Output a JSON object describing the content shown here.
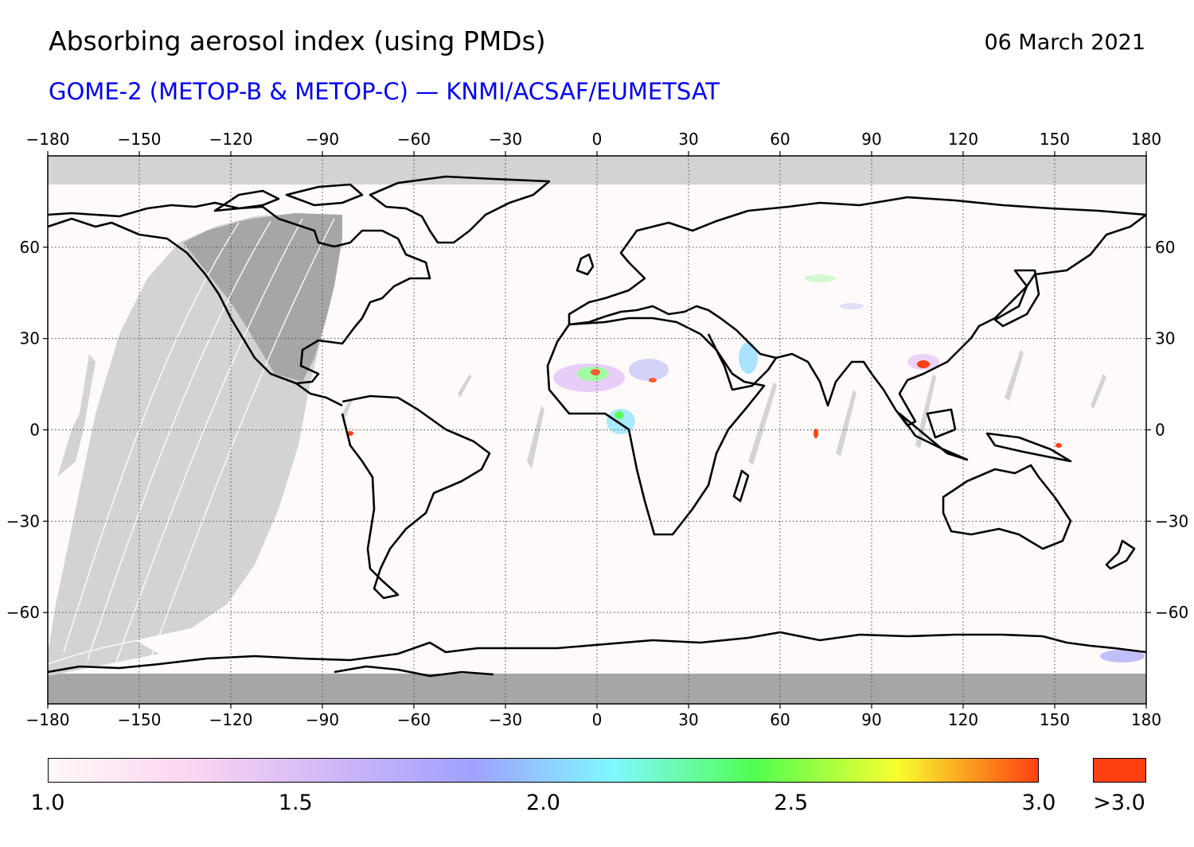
{
  "header": {
    "title": "Absorbing aerosol index (using PMDs)",
    "date": "06 March 2021",
    "subtitle": "GOME-2 (METOP-B & METOP-C) — KNMI/ACSAF/EUMETSAT"
  },
  "map": {
    "lon_range": [
      -180,
      180
    ],
    "lat_range": [
      -90,
      90
    ],
    "lon_ticks": [
      -180,
      -150,
      -120,
      -90,
      -60,
      -30,
      0,
      30,
      60,
      90,
      120,
      150,
      180
    ],
    "lon_tick_labels": [
      "−180",
      "−150",
      "−120",
      "−90",
      "−60",
      "−30",
      "0",
      "30",
      "60",
      "90",
      "120",
      "150",
      "180"
    ],
    "lat_ticks": [
      60,
      30,
      0,
      -30,
      -60
    ],
    "lat_tick_labels": [
      "60",
      "30",
      "0",
      "−30",
      "−60"
    ],
    "grid": "dotted",
    "colors": {
      "no_data": "#d3d3d3",
      "night": "#a6a6a6",
      "background": "#fffafa",
      "coastline": "#000000"
    }
  },
  "colorbar": {
    "min": 1.0,
    "max": 3.0,
    "tick_labels": [
      "1.0",
      "1.5",
      "2.0",
      "2.5",
      "3.0"
    ],
    "overflow_label": ">3.0",
    "overflow_color": "#ff4010",
    "stops": [
      "#fff8f8",
      "#fcd6f0",
      "#d0b8f8",
      "#a0a0ff",
      "#80f8ff",
      "#50ff50",
      "#f8ff30",
      "#ff4010"
    ]
  }
}
